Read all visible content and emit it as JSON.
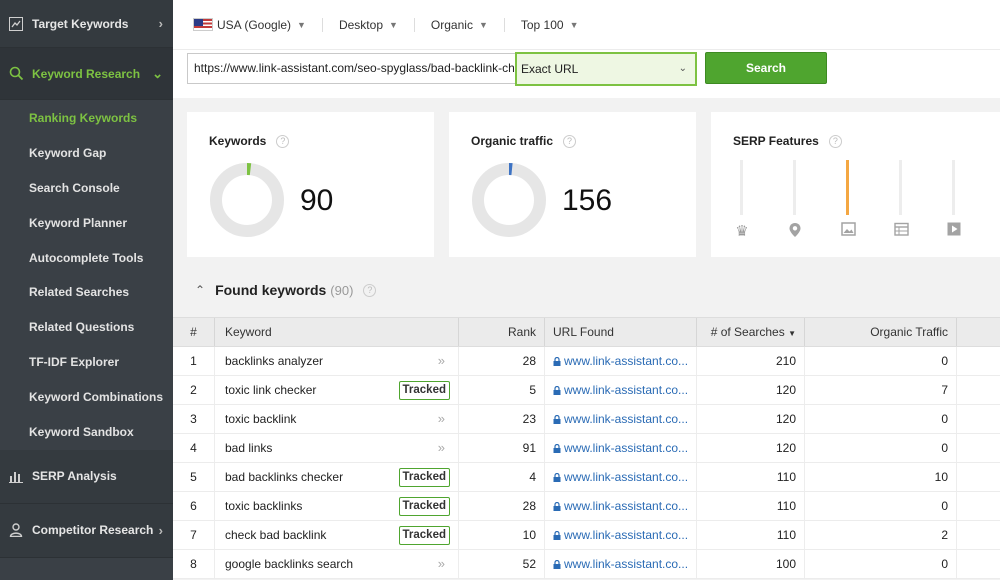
{
  "sidebar": {
    "sections": {
      "target_keywords": "Target Keywords",
      "keyword_research": "Keyword Research",
      "serp_analysis": "SERP Analysis",
      "competitor_research": "Competitor Research"
    },
    "items": [
      {
        "label": "Ranking Keywords",
        "current": true
      },
      {
        "label": "Keyword Gap"
      },
      {
        "label": "Search Console"
      },
      {
        "label": "Keyword Planner"
      },
      {
        "label": "Autocomplete Tools"
      },
      {
        "label": "Related Searches"
      },
      {
        "label": "Related Questions"
      },
      {
        "label": "TF-IDF Explorer"
      },
      {
        "label": "Keyword Combinations"
      },
      {
        "label": "Keyword Sandbox"
      }
    ]
  },
  "filters": {
    "location": "USA (Google)",
    "device": "Desktop",
    "type": "Organic",
    "top": "Top 100"
  },
  "search": {
    "url": "https://www.link-assistant.com/seo-spyglass/bad-backlink-checker",
    "match": "Exact URL",
    "button": "Search"
  },
  "cards": {
    "keywords": {
      "title": "Keywords",
      "value": "90"
    },
    "organic": {
      "title": "Organic traffic",
      "value": "156"
    },
    "serp": {
      "title": "SERP Features"
    }
  },
  "found": {
    "title": "Found keywords",
    "count": "(90)"
  },
  "table": {
    "headers": {
      "num": "#",
      "keyword": "Keyword",
      "rank": "Rank",
      "url": "URL Found",
      "searches": "# of Searches",
      "organic": "Organic Traffic"
    },
    "tracked_label": "Tracked",
    "rows": [
      {
        "n": "1",
        "kw": "backlinks analyzer",
        "tracked": false,
        "rank": "28",
        "url": "www.link-assistant.co...",
        "searches": "210",
        "org": "0"
      },
      {
        "n": "2",
        "kw": "toxic link checker",
        "tracked": true,
        "rank": "5",
        "url": "www.link-assistant.co...",
        "searches": "120",
        "org": "7"
      },
      {
        "n": "3",
        "kw": "toxic backlink",
        "tracked": false,
        "rank": "23",
        "url": "www.link-assistant.co...",
        "searches": "120",
        "org": "0"
      },
      {
        "n": "4",
        "kw": "bad links",
        "tracked": false,
        "rank": "91",
        "url": "www.link-assistant.co...",
        "searches": "120",
        "org": "0"
      },
      {
        "n": "5",
        "kw": "bad backlinks checker",
        "tracked": true,
        "rank": "4",
        "url": "www.link-assistant.co...",
        "searches": "110",
        "org": "10"
      },
      {
        "n": "6",
        "kw": "toxic backlinks",
        "tracked": true,
        "rank": "28",
        "url": "www.link-assistant.co...",
        "searches": "110",
        "org": "0"
      },
      {
        "n": "7",
        "kw": "check bad backlink",
        "tracked": true,
        "rank": "10",
        "url": "www.link-assistant.co...",
        "searches": "110",
        "org": "2"
      },
      {
        "n": "8",
        "kw": "google backlinks search",
        "tracked": false,
        "rank": "52",
        "url": "www.link-assistant.co...",
        "searches": "100",
        "org": "0"
      }
    ]
  }
}
